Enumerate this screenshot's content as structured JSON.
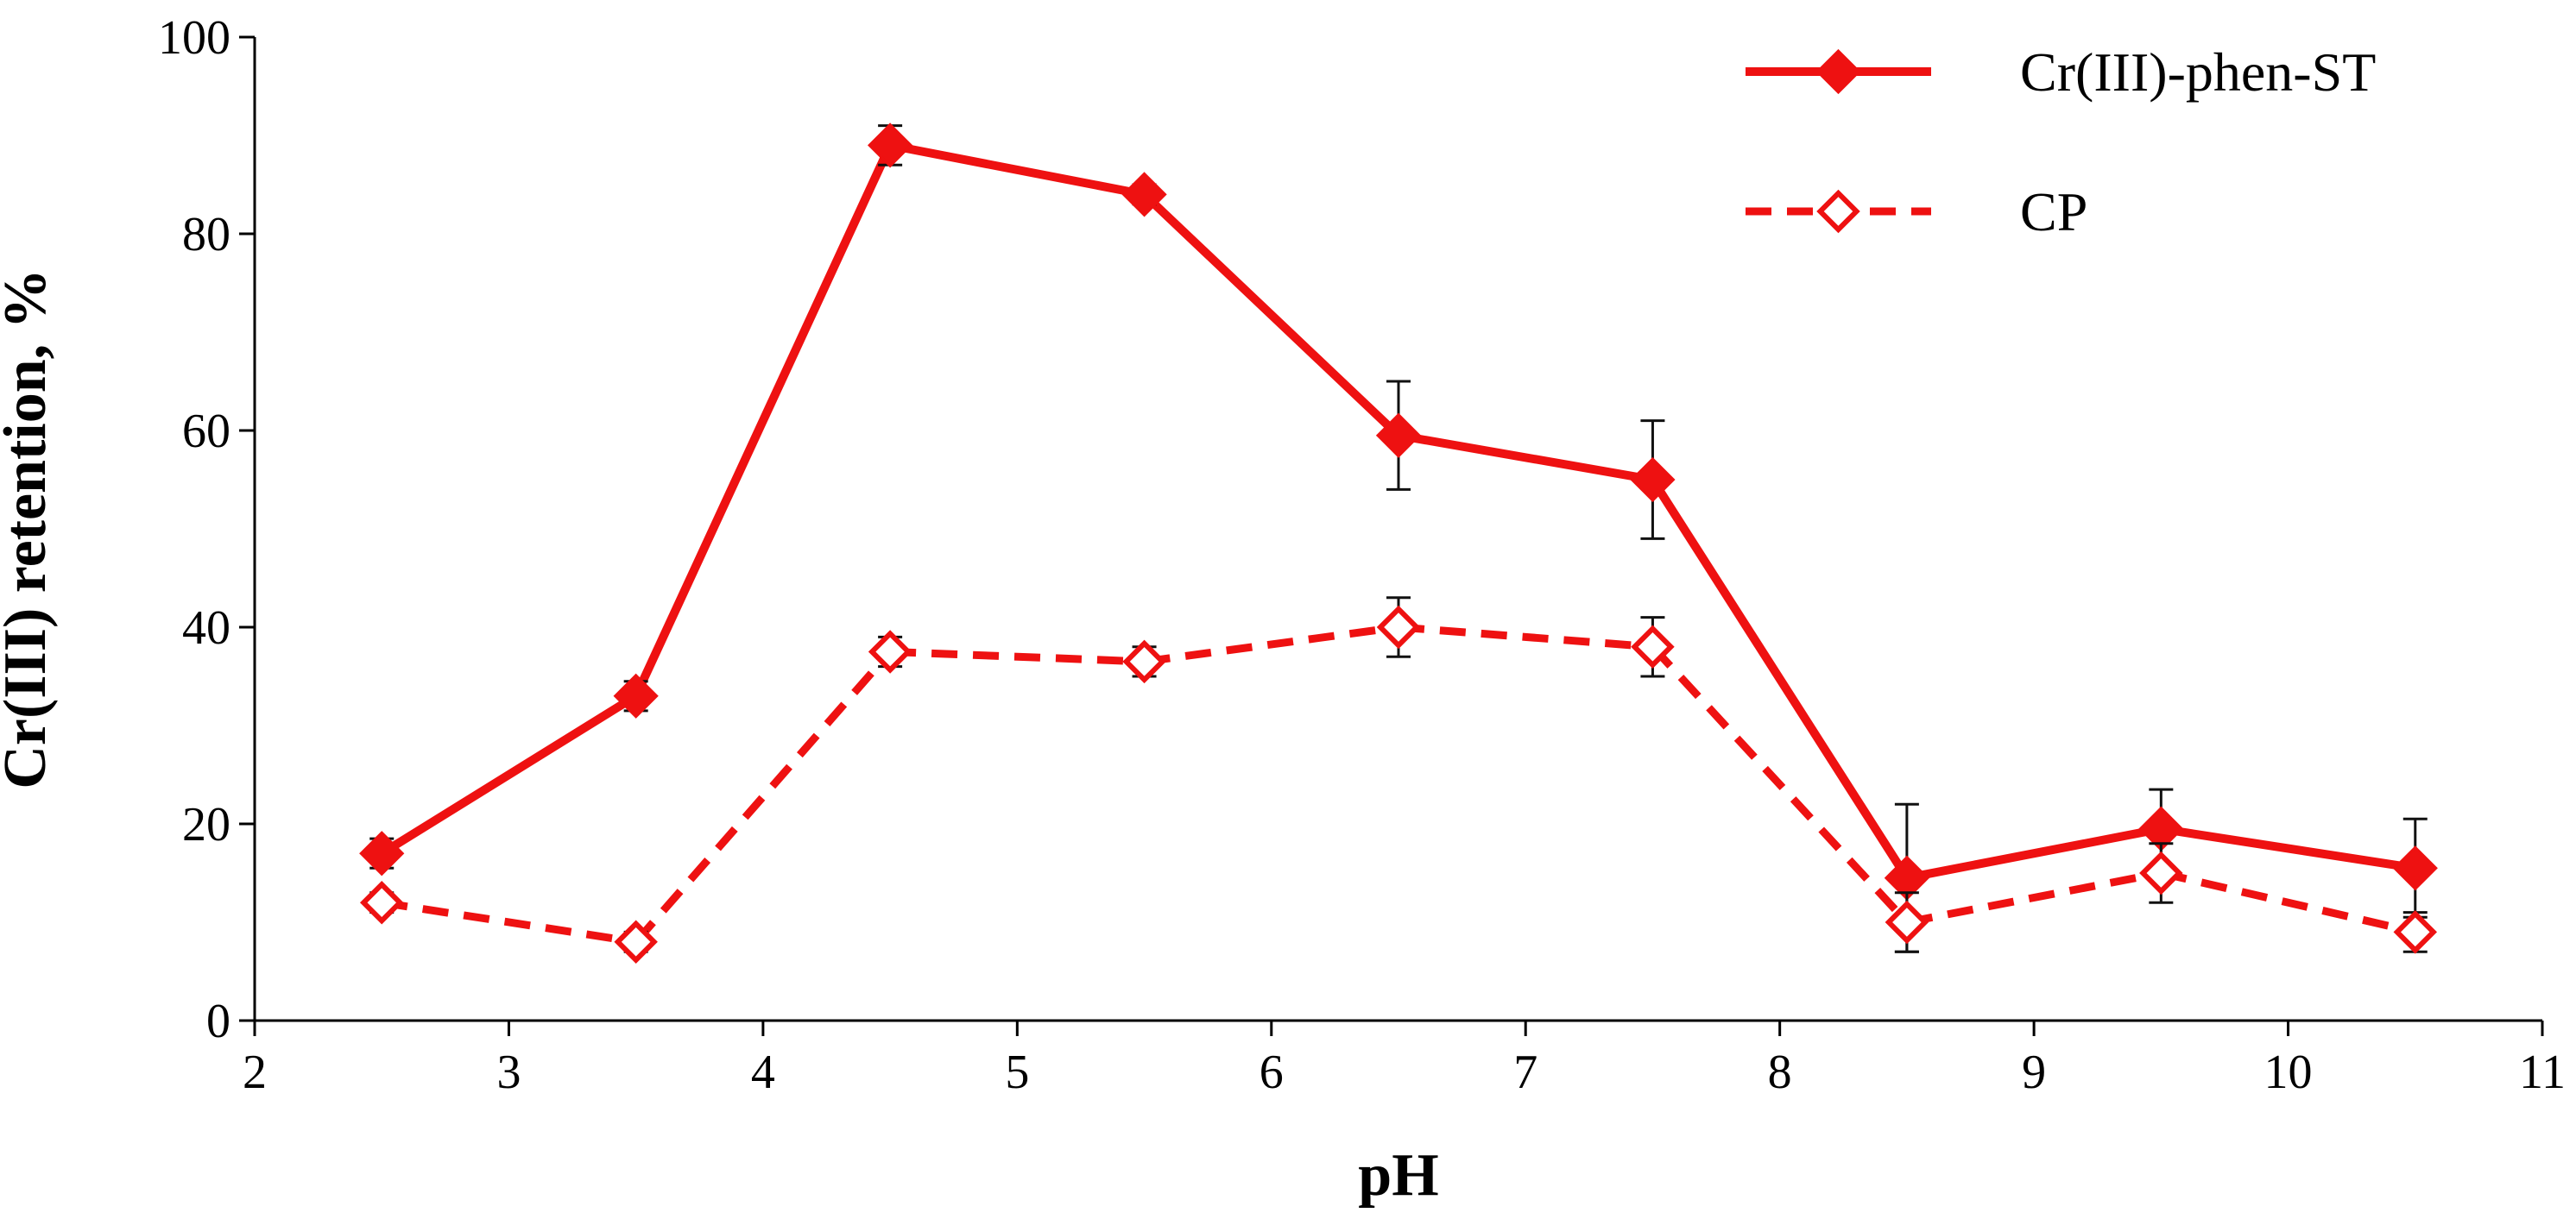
{
  "chart_data": {
    "type": "line",
    "title": "",
    "xlabel": "pH",
    "ylabel": "Cr(III) retention, %",
    "xlim": [
      2,
      11
    ],
    "ylim": [
      0,
      100
    ],
    "xticks": [
      2,
      3,
      4,
      5,
      6,
      7,
      8,
      9,
      10,
      11
    ],
    "yticks": [
      0,
      20,
      40,
      60,
      80,
      100
    ],
    "xtick_labels": [
      "2",
      "3",
      "4",
      "5",
      "6",
      "7",
      "8",
      "9",
      "10",
      "11"
    ],
    "ytick_labels": [
      "0",
      "20",
      "40",
      "60",
      "80",
      "100"
    ],
    "grid": false,
    "legend_position": "top-right",
    "x": [
      2.5,
      3.5,
      4.5,
      5.5,
      6.5,
      7.5,
      8.5,
      9.5,
      10.5
    ],
    "series": [
      {
        "name": "Cr(III)-phen-ST",
        "color": "#ee1111",
        "line_style": "solid",
        "marker": "filled-diamond",
        "values": [
          17,
          33,
          89,
          84,
          59.5,
          55,
          14.5,
          19.5,
          15.5
        ],
        "errors": [
          1.5,
          1.5,
          2,
          1,
          5.5,
          6,
          7.5,
          4,
          5
        ]
      },
      {
        "name": "CP",
        "color": "#ee1111",
        "line_style": "dashed",
        "marker": "open-diamond",
        "values": [
          12,
          8,
          37.5,
          36.5,
          40,
          38,
          10,
          15,
          9
        ],
        "errors": [
          1,
          1,
          1.5,
          1.5,
          3,
          3,
          3,
          3,
          2
        ]
      }
    ]
  }
}
